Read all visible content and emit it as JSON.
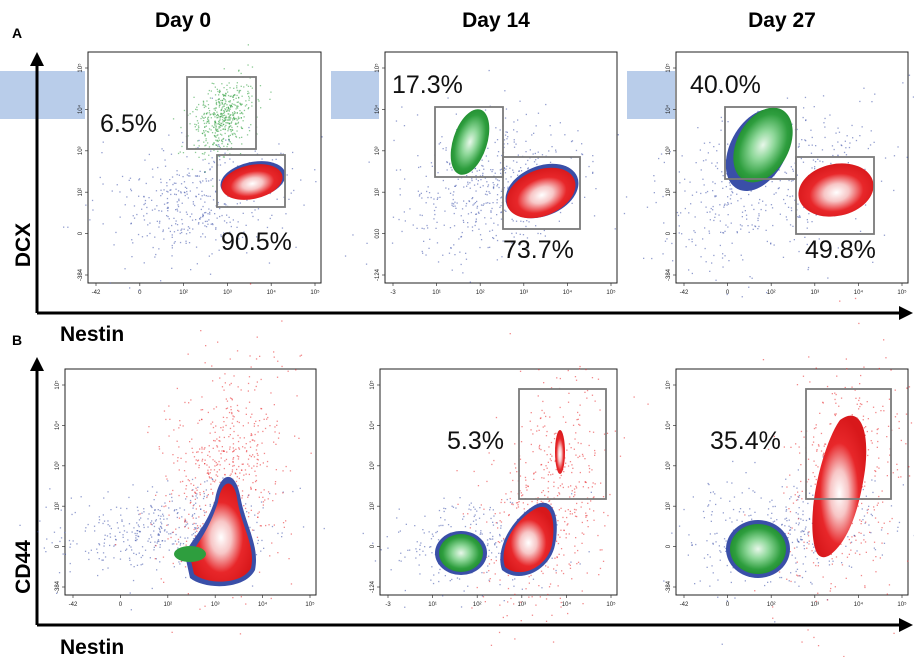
{
  "figure": {
    "panels": [
      {
        "letter": "A",
        "columns": [
          "Day 0",
          "Day 14",
          "Day 27"
        ],
        "y_axis_label": "DCX",
        "x_axis_label": "Nestin"
      },
      {
        "letter": "B",
        "y_axis_label": "CD44",
        "x_axis_label": "Nestin"
      }
    ]
  },
  "chart_data": [
    {
      "type": "scatter",
      "subtype": "flow-cytometry-density",
      "panel": "A",
      "title": "Day 0",
      "xlabel": "Nestin",
      "ylabel": "DCX",
      "x_ticks": [
        "-42",
        "0",
        "10²",
        "10³",
        "10⁴",
        "10⁵"
      ],
      "y_ticks": [
        "-384",
        "0",
        "10²",
        "10³",
        "10⁴",
        "10⁵"
      ],
      "gates": [
        {
          "label": "6.5%",
          "value": 6.5,
          "population_color": "#2e9e3e"
        },
        {
          "label": "90.5%",
          "value": 90.5,
          "population_color": "#e8272a"
        }
      ]
    },
    {
      "type": "scatter",
      "subtype": "flow-cytometry-density",
      "panel": "A",
      "title": "Day 14",
      "xlabel": "Nestin",
      "ylabel": "DCX",
      "x_ticks": [
        "-3",
        "10¹",
        "10²",
        "10³",
        "10⁴",
        "10⁵"
      ],
      "y_ticks": [
        "-124",
        "010",
        "10²",
        "10³",
        "10⁴",
        "10⁵"
      ],
      "gates": [
        {
          "label": "17.3%",
          "value": 17.3,
          "population_color": "#2e9e3e"
        },
        {
          "label": "73.7%",
          "value": 73.7,
          "population_color": "#e8272a"
        }
      ]
    },
    {
      "type": "scatter",
      "subtype": "flow-cytometry-density",
      "panel": "A",
      "title": "Day 27",
      "xlabel": "Nestin",
      "ylabel": "DCX",
      "x_ticks": [
        "-42",
        "0",
        "10²",
        "10³",
        "10⁴",
        "10⁵"
      ],
      "y_ticks": [
        "-384",
        "0",
        "10²",
        "10³",
        "10⁴",
        "10⁵"
      ],
      "gates": [
        {
          "label": "40.0%",
          "value": 40.0,
          "population_color": "#2e9e3e"
        },
        {
          "label": "49.8%",
          "value": 49.8,
          "population_color": "#e8272a"
        }
      ]
    },
    {
      "type": "scatter",
      "subtype": "flow-cytometry-density",
      "panel": "B",
      "title": "Day 0",
      "xlabel": "Nestin",
      "ylabel": "CD44",
      "x_ticks": [
        "-42",
        "0",
        "10²",
        "10³",
        "10⁴",
        "10⁵"
      ],
      "y_ticks": [
        "-384",
        "0",
        "10²",
        "10³",
        "10⁴",
        "10⁵"
      ],
      "gates": []
    },
    {
      "type": "scatter",
      "subtype": "flow-cytometry-density",
      "panel": "B",
      "title": "Day 14",
      "xlabel": "Nestin",
      "ylabel": "CD44",
      "x_ticks": [
        "-3",
        "10¹",
        "10²",
        "10³",
        "10⁴",
        "10⁵"
      ],
      "y_ticks": [
        "-124",
        "0",
        "10²",
        "10³",
        "10⁴",
        "10⁵"
      ],
      "gates": [
        {
          "label": "5.3%",
          "value": 5.3,
          "population_color": "#e8272a"
        }
      ]
    },
    {
      "type": "scatter",
      "subtype": "flow-cytometry-density",
      "panel": "B",
      "title": "Day 27",
      "xlabel": "Nestin",
      "ylabel": "CD44",
      "x_ticks": [
        "-42",
        "0",
        "10²",
        "10³",
        "10⁴",
        "10⁵"
      ],
      "y_ticks": [
        "-384",
        "0",
        "10²",
        "10³",
        "10⁴",
        "10⁵"
      ],
      "gates": [
        {
          "label": "35.4%",
          "value": 35.4,
          "population_color": "#e8272a"
        }
      ]
    }
  ],
  "colors": {
    "green_population": "#2e9e3e",
    "red_population": "#e8272a",
    "blue_events": "#3a4fa8",
    "gate_box": "#7a7a7a",
    "highlight_band": "#b9cdea"
  }
}
